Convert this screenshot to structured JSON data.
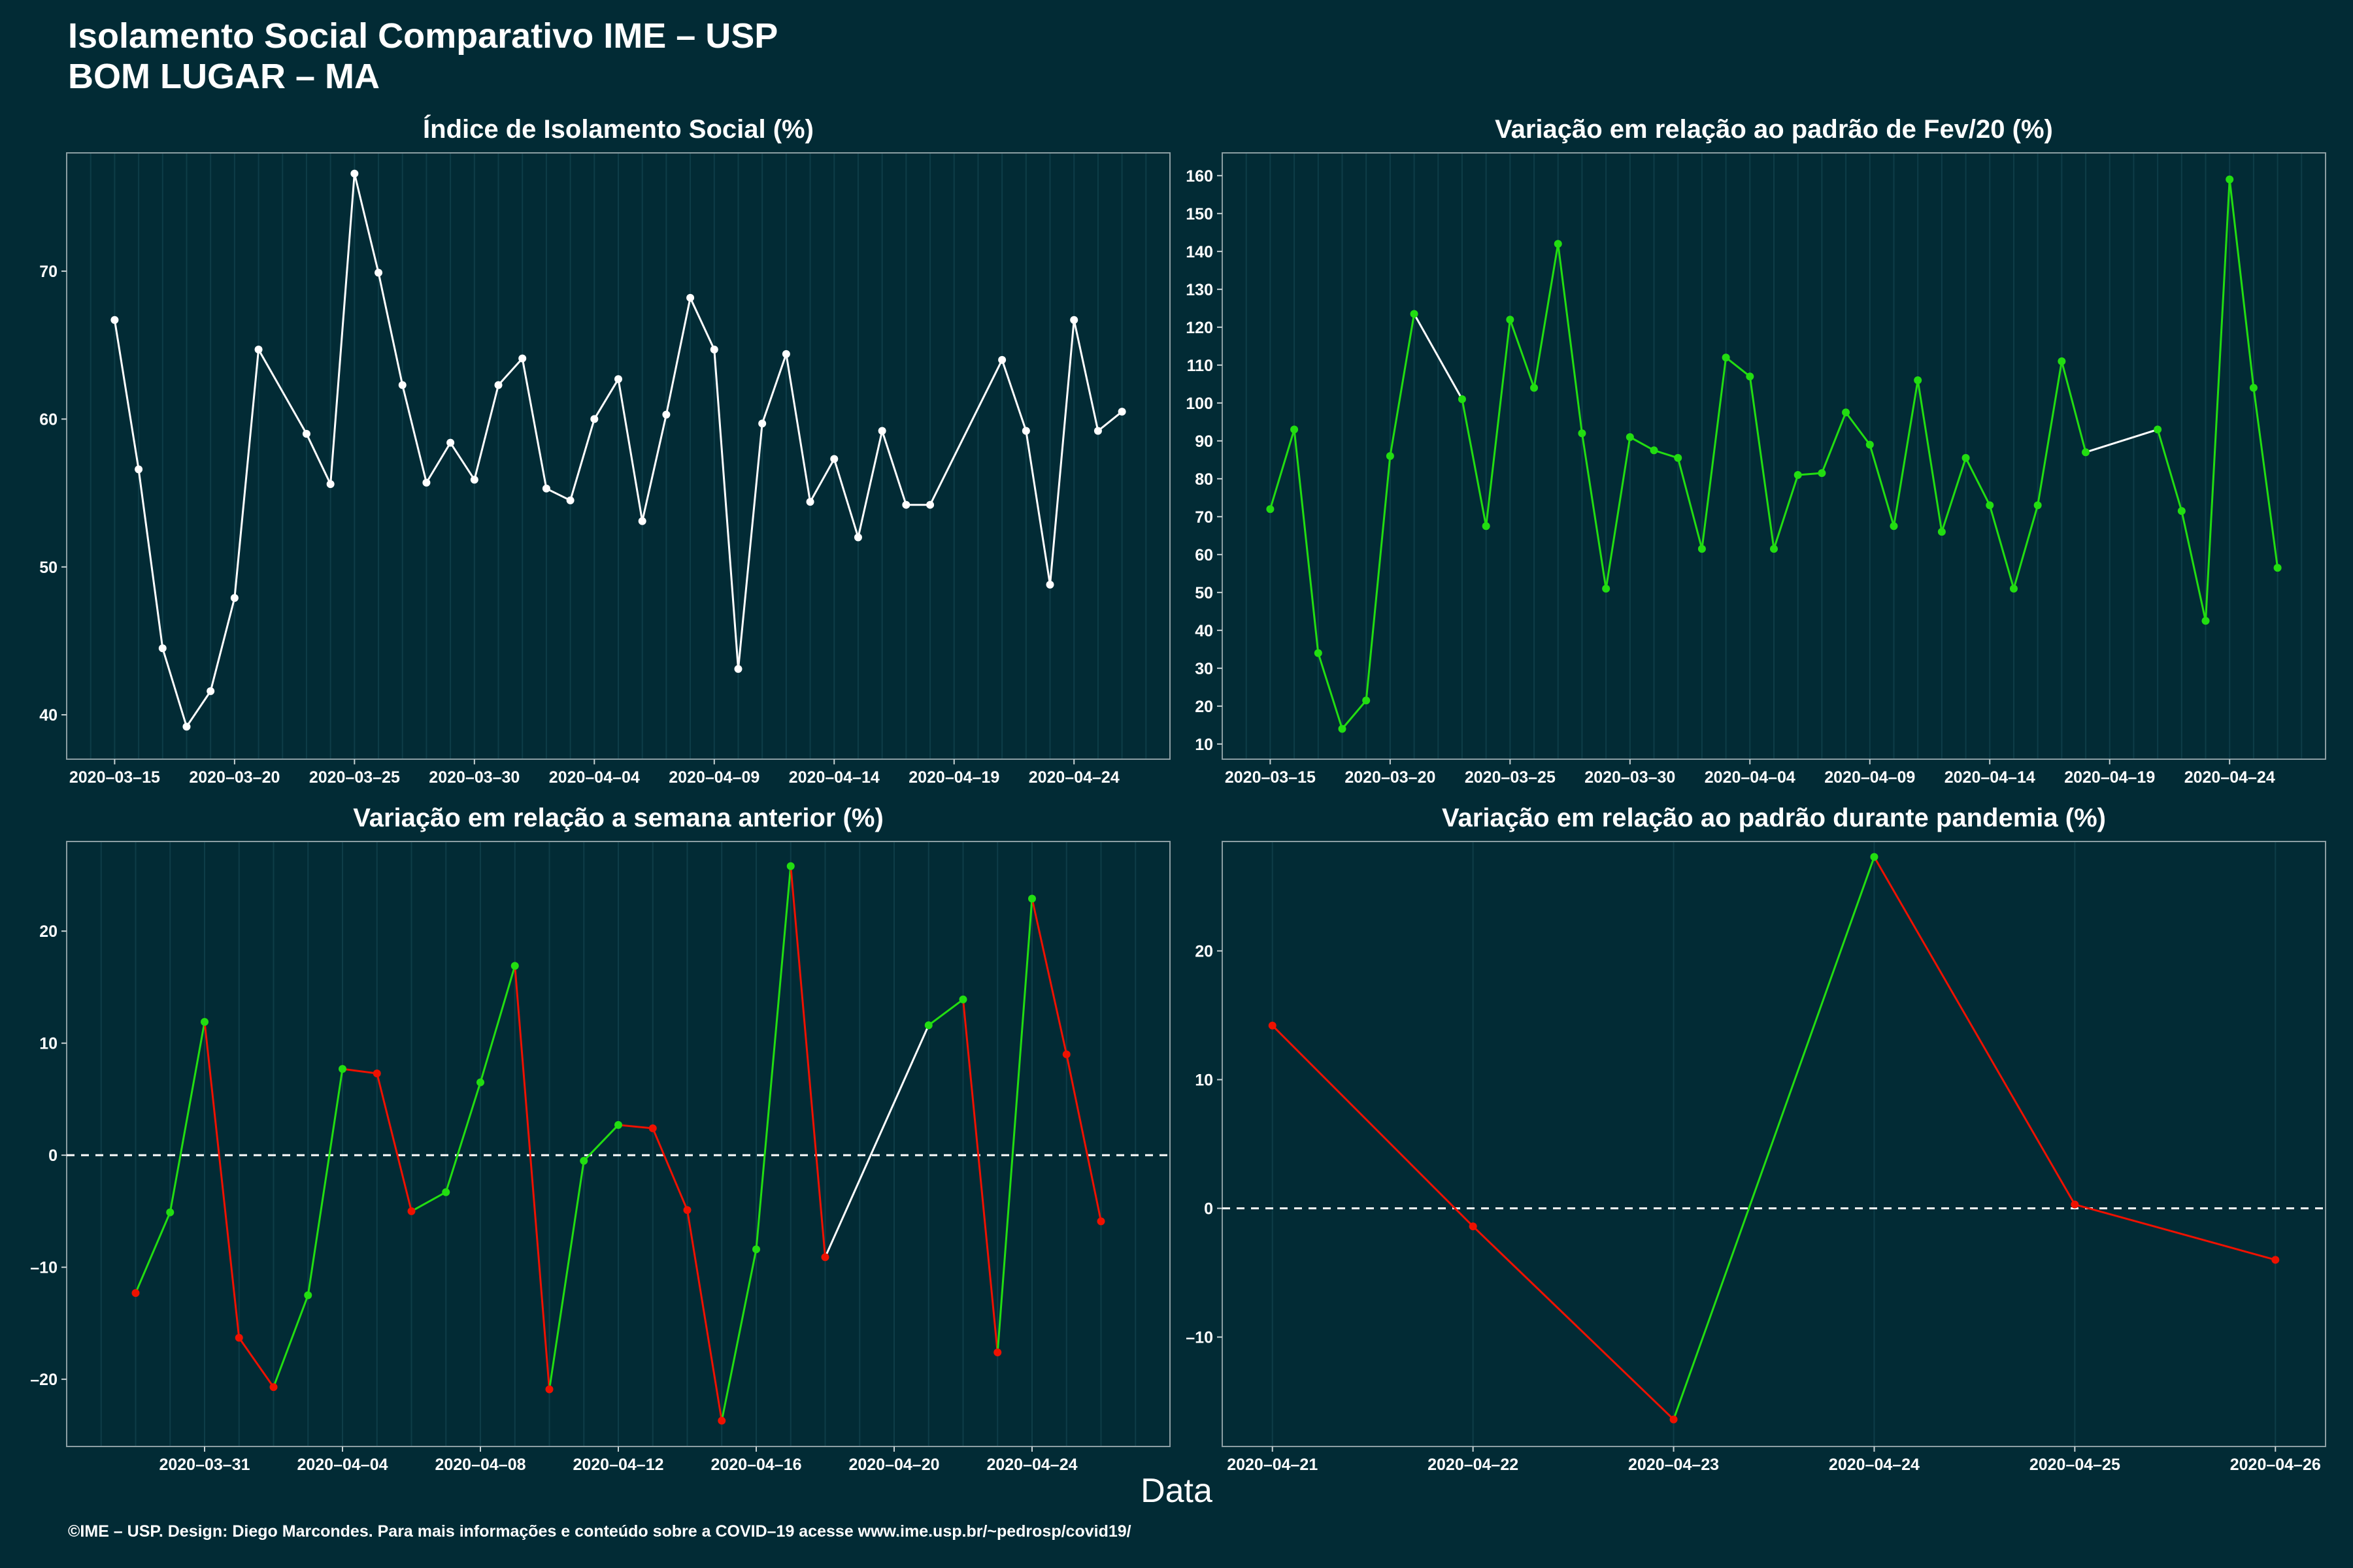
{
  "header": {
    "title_line1": "Isolamento Social Comparativo IME – USP",
    "title_line2": "BOM LUGAR – MA"
  },
  "footer": "©IME – USP. Design: Diego Marcondes. Para mais informações e conteúdo sobre a COVID–19 acesse www.ime.usp.br/~pedrosp/covid19/",
  "xlabel": "Data",
  "colors": {
    "background": "#022b35",
    "white": "#ffffff",
    "green": "#22dd11",
    "red": "#ee1100",
    "grid": "#0e3d48"
  },
  "chart_data": [
    {
      "type": "line",
      "title": "Índice de Isolamento Social (%)",
      "ylim": [
        37,
        78
      ],
      "yticks": [
        40,
        50,
        60,
        70
      ],
      "xlim": [
        "2020-03-13",
        "2020-04-28"
      ],
      "xticks": [
        "2020-03-15",
        "2020-03-20",
        "2020-03-25",
        "2020-03-30",
        "2020-04-04",
        "2020-04-09",
        "2020-04-14",
        "2020-04-19",
        "2020-04-24"
      ],
      "series": [
        {
          "color": "white",
          "points": [
            [
              "2020-03-15",
              66.7
            ],
            [
              "2020-03-16",
              56.6
            ],
            [
              "2020-03-17",
              44.5
            ],
            [
              "2020-03-18",
              39.2
            ],
            [
              "2020-03-19",
              41.6
            ],
            [
              "2020-03-20",
              47.9
            ],
            [
              "2020-03-21",
              64.7
            ],
            [
              "2020-03-23",
              59.0
            ],
            [
              "2020-03-24",
              55.6
            ],
            [
              "2020-03-25",
              76.6
            ],
            [
              "2020-03-26",
              69.9
            ],
            [
              "2020-03-27",
              62.3
            ],
            [
              "2020-03-28",
              55.7
            ],
            [
              "2020-03-29",
              58.4
            ],
            [
              "2020-03-30",
              55.9
            ],
            [
              "2020-03-31",
              62.3
            ],
            [
              "2020-04-01",
              64.1
            ],
            [
              "2020-04-02",
              55.3
            ],
            [
              "2020-04-03",
              54.5
            ],
            [
              "2020-04-04",
              60.0
            ],
            [
              "2020-04-05",
              62.7
            ],
            [
              "2020-04-06",
              53.1
            ],
            [
              "2020-04-07",
              60.3
            ],
            [
              "2020-04-08",
              68.2
            ],
            [
              "2020-04-09",
              64.7
            ],
            [
              "2020-04-10",
              43.1
            ],
            [
              "2020-04-11",
              59.7
            ],
            [
              "2020-04-12",
              64.4
            ],
            [
              "2020-04-13",
              54.4
            ],
            [
              "2020-04-14",
              57.3
            ],
            [
              "2020-04-15",
              52.0
            ],
            [
              "2020-04-16",
              59.2
            ],
            [
              "2020-04-17",
              54.2
            ],
            [
              "2020-04-18",
              54.2
            ],
            [
              "2020-04-21",
              64.0
            ],
            [
              "2020-04-22",
              59.2
            ],
            [
              "2020-04-23",
              48.8
            ],
            [
              "2020-04-24",
              66.7
            ],
            [
              "2020-04-25",
              59.2
            ],
            [
              "2020-04-26",
              60.5
            ]
          ]
        }
      ]
    },
    {
      "type": "line",
      "title": "Variação em relação ao padrão de Fev/20 (%)",
      "ylim": [
        6,
        166
      ],
      "yticks": [
        10,
        20,
        30,
        40,
        50,
        60,
        70,
        80,
        90,
        100,
        110,
        120,
        130,
        140,
        150,
        160
      ],
      "xlim": [
        "2020-03-13",
        "2020-04-28"
      ],
      "xticks": [
        "2020-03-15",
        "2020-03-20",
        "2020-03-25",
        "2020-03-30",
        "2020-04-04",
        "2020-04-09",
        "2020-04-14",
        "2020-04-19",
        "2020-04-24"
      ],
      "series": [
        {
          "color": "green",
          "points": [
            [
              "2020-03-15",
              72
            ],
            [
              "2020-03-16",
              93
            ],
            [
              "2020-03-17",
              34
            ],
            [
              "2020-03-18",
              14
            ],
            [
              "2020-03-19",
              21.5
            ],
            [
              "2020-03-20",
              86
            ],
            [
              "2020-03-21",
              123.5
            ],
            [
              "2020-03-23",
              101
            ],
            [
              "2020-03-24",
              67.5
            ],
            [
              "2020-03-25",
              122
            ],
            [
              "2020-03-26",
              104
            ],
            [
              "2020-03-27",
              142
            ],
            [
              "2020-03-28",
              92
            ],
            [
              "2020-03-29",
              51
            ],
            [
              "2020-03-30",
              91
            ],
            [
              "2020-03-31",
              87.5
            ],
            [
              "2020-04-01",
              85.5
            ],
            [
              "2020-04-02",
              61.5
            ],
            [
              "2020-04-03",
              112
            ],
            [
              "2020-04-04",
              107
            ],
            [
              "2020-04-05",
              61.5
            ],
            [
              "2020-04-06",
              81
            ],
            [
              "2020-04-07",
              81.5
            ],
            [
              "2020-04-08",
              97.5
            ],
            [
              "2020-04-09",
              89
            ],
            [
              "2020-04-10",
              67.5
            ],
            [
              "2020-04-11",
              106
            ],
            [
              "2020-04-12",
              66
            ],
            [
              "2020-04-13",
              85.5
            ],
            [
              "2020-04-14",
              73
            ],
            [
              "2020-04-15",
              51
            ],
            [
              "2020-04-16",
              73
            ],
            [
              "2020-04-17",
              111
            ],
            [
              "2020-04-18",
              87
            ],
            [
              "2020-04-21",
              93
            ],
            [
              "2020-04-22",
              71.5
            ],
            [
              "2020-04-23",
              42.5
            ],
            [
              "2020-04-24",
              159
            ],
            [
              "2020-04-25",
              104
            ],
            [
              "2020-04-26",
              56.5
            ]
          ]
        }
      ]
    },
    {
      "type": "line",
      "title": "Variação em relação a semana anterior (%)",
      "ylim": [
        -26,
        28
      ],
      "yticks": [
        -20,
        -10,
        0,
        10,
        20
      ],
      "xlim": [
        "2020-03-27",
        "2020-04-28"
      ],
      "xticks": [
        "2020-03-31",
        "2020-04-04",
        "2020-04-08",
        "2020-04-12",
        "2020-04-16",
        "2020-04-20",
        "2020-04-24"
      ],
      "reference_line": 0,
      "series": [
        {
          "color_rule": "green when increasing, red when decreasing, white across gap",
          "points": [
            [
              "2020-03-29",
              -12.3
            ],
            [
              "2020-03-30",
              -5.1
            ],
            [
              "2020-03-31",
              11.9
            ],
            [
              "2020-04-01",
              -16.3
            ],
            [
              "2020-04-02",
              -20.7
            ],
            [
              "2020-04-03",
              -12.5
            ],
            [
              "2020-04-04",
              7.7
            ],
            [
              "2020-04-05",
              7.3
            ],
            [
              "2020-04-06",
              -5.0
            ],
            [
              "2020-04-07",
              -3.3
            ],
            [
              "2020-04-08",
              6.5
            ],
            [
              "2020-04-09",
              16.9
            ],
            [
              "2020-04-10",
              -20.9
            ],
            [
              "2020-04-11",
              -0.5
            ],
            [
              "2020-04-12",
              2.7
            ],
            [
              "2020-04-13",
              2.4
            ],
            [
              "2020-04-14",
              -4.9
            ],
            [
              "2020-04-15",
              -23.7
            ],
            [
              "2020-04-16",
              -8.4
            ],
            [
              "2020-04-17",
              25.8
            ],
            [
              "2020-04-18",
              -9.1
            ],
            [
              "2020-04-21",
              11.6
            ],
            [
              "2020-04-22",
              13.9
            ],
            [
              "2020-04-23",
              -17.6
            ],
            [
              "2020-04-24",
              22.9
            ],
            [
              "2020-04-25",
              9.0
            ],
            [
              "2020-04-26",
              -5.9
            ]
          ]
        }
      ]
    },
    {
      "type": "line",
      "title": "Variação em relação ao padrão durante pandemia (%)",
      "ylim": [
        -18.5,
        28.5
      ],
      "yticks": [
        -10,
        0,
        10,
        20
      ],
      "xlim": [
        "2020-04-20.75",
        "2020-04-26.25"
      ],
      "xticks": [
        "2020-04-21",
        "2020-04-22",
        "2020-04-23",
        "2020-04-24",
        "2020-04-25",
        "2020-04-26"
      ],
      "reference_line": 0,
      "series": [
        {
          "color_rule": "green when increasing, red when decreasing",
          "points": [
            [
              "2020-04-21",
              14.2
            ],
            [
              "2020-04-22",
              -1.4
            ],
            [
              "2020-04-23",
              -16.4
            ],
            [
              "2020-04-24",
              27.3
            ],
            [
              "2020-04-25",
              0.3
            ],
            [
              "2020-04-26",
              -4.0
            ]
          ]
        }
      ]
    }
  ]
}
